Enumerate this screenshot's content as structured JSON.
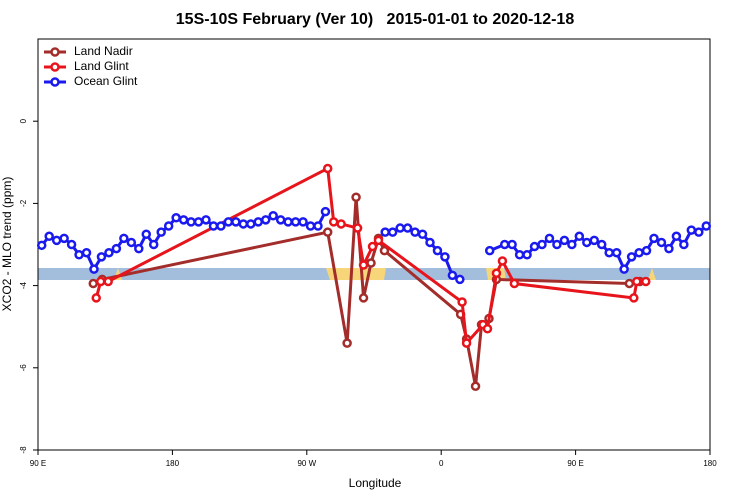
{
  "chart_data": {
    "type": "line",
    "title": "15S-10S February (Ver 10)   2015-01-01 to 2020-12-18",
    "x_label": "Longitude",
    "y_label": "XCO2 - MLO trend (ppm)",
    "xlim": [
      90,
      540
    ],
    "xticks": [
      {
        "value": 90,
        "label": "90 E"
      },
      {
        "value": 180,
        "label": "180"
      },
      {
        "value": 270,
        "label": "90 W"
      },
      {
        "value": 360,
        "label": "0"
      },
      {
        "value": 450,
        "label": "90 E"
      },
      {
        "value": 540,
        "label": "180"
      }
    ],
    "ylim": [
      -8,
      2
    ],
    "yticks": [
      0,
      -2,
      -4,
      -6,
      -8
    ],
    "legend": "top-left",
    "series": [
      {
        "name": "Land Nadir",
        "color": "#a32d2a",
        "x": [
          127,
          133,
          284,
          297,
          303,
          308,
          313,
          318,
          322,
          373,
          377,
          383,
          387,
          392,
          397,
          486,
          493
        ],
        "values": [
          -3.95,
          -3.85,
          -2.7,
          -5.4,
          -1.85,
          -4.3,
          -3.45,
          -2.85,
          -3.15,
          -4.7,
          -5.3,
          -6.45,
          -4.95,
          -4.8,
          -3.85,
          -3.95,
          -3.9
        ]
      },
      {
        "name": "Land Glint",
        "color": "#e8141b",
        "x": [
          129,
          132,
          137,
          284,
          288,
          293,
          304,
          308,
          314,
          318,
          374,
          377,
          388,
          391,
          397,
          401,
          409,
          489,
          491,
          497
        ],
        "values": [
          -4.3,
          -3.9,
          -3.9,
          -1.15,
          -2.45,
          -2.5,
          -2.6,
          -3.5,
          -3.05,
          -2.9,
          -4.4,
          -5.4,
          -4.95,
          -5.05,
          -3.7,
          -3.4,
          -3.95,
          -4.3,
          -3.9,
          -3.9
        ]
      },
      {
        "name": "Ocean Glint",
        "color": "#1a1aef",
        "x": [
          92.5,
          97.5,
          102.5,
          107.5,
          112.5,
          117.5,
          122.5,
          127.5,
          132.5,
          137.5,
          142.5,
          147.5,
          152.5,
          157.5,
          162.5,
          167.5,
          172.5,
          177.5,
          182.5,
          187.5,
          192.5,
          197.5,
          202.5,
          207.5,
          212.5,
          217.5,
          222.5,
          227.5,
          232.5,
          237.5,
          242.5,
          247.5,
          252.5,
          257.5,
          262.5,
          267.5,
          272.5,
          277.5,
          282.5,
          302.5,
          322.5,
          327.5,
          332.5,
          337.5,
          342.5,
          347.5,
          352.5,
          357.5,
          362.5,
          367.5,
          372.5,
          382.5,
          392.5,
          402.5,
          407.5,
          412.5,
          417.5,
          422.5,
          427.5,
          432.5,
          437.5,
          442.5,
          447.5,
          452.5,
          457.5,
          462.5,
          467.5,
          472.5,
          477.5,
          482.5,
          487.5,
          492.5,
          497.5,
          502.5,
          507.5,
          512.5,
          517.5,
          522.5,
          527.5,
          532.5,
          537.5
        ],
        "values": [
          -3.02,
          -2.8,
          -2.9,
          -2.85,
          -3.0,
          -3.25,
          -3.2,
          -3.6,
          -3.3,
          -3.2,
          -3.1,
          -2.85,
          -2.95,
          -3.1,
          -2.75,
          -3.0,
          -2.7,
          -2.55,
          -2.35,
          -2.4,
          -2.45,
          -2.45,
          -2.4,
          -2.55,
          -2.55,
          -2.45,
          -2.45,
          -2.5,
          -2.5,
          -2.45,
          -2.4,
          -2.3,
          -2.4,
          -2.45,
          -2.45,
          -2.45,
          -2.55,
          -2.55,
          -2.2,
          null,
          -2.7,
          -2.7,
          -2.6,
          -2.6,
          -2.7,
          -2.75,
          -2.95,
          -3.15,
          -3.3,
          -3.75,
          -3.85,
          null,
          -3.15,
          -3.0,
          -3.0,
          -3.25,
          -3.25,
          -3.05,
          -3.0,
          -2.85,
          -3.0,
          -2.9,
          -3.0,
          -2.8,
          -2.95,
          -2.9,
          -3.0,
          -3.2,
          -3.2,
          -3.6,
          -3.3,
          -3.2,
          -3.15,
          -2.85,
          -2.95,
          -3.1,
          -2.8,
          -3.0,
          -2.65,
          -2.7,
          -2.55
        ]
      }
    ]
  }
}
